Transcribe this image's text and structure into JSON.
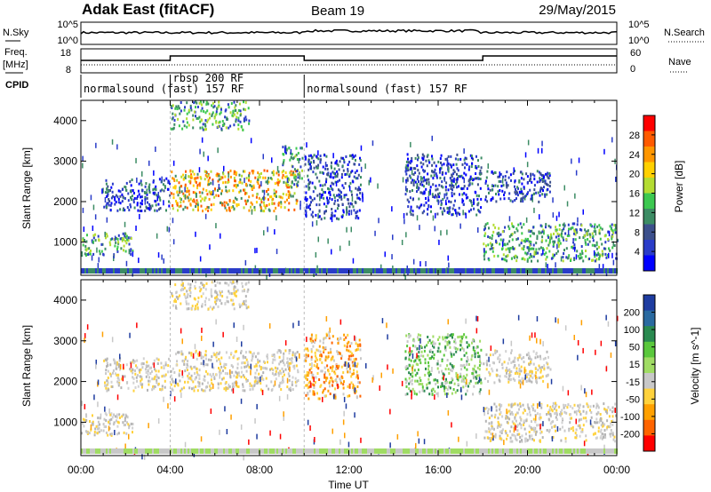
{
  "header": {
    "station": "Adak East (fitACF)",
    "beam": "Beam 19",
    "date": "29/May/2015"
  },
  "summary_panel": {
    "left_label_top": "N.Sky",
    "left_label_freq_1": "Freq.",
    "left_label_freq_2": "[MHz]",
    "left_label_cpid": "CPID",
    "right_label_top": "N.Search",
    "right_label_nave": "Nave",
    "sky_ticks": [
      "10^5",
      "10^0"
    ],
    "search_ticks": [
      "10^5",
      "10^0"
    ],
    "freq_ticks": [
      "18",
      "8"
    ],
    "nave_ticks": [
      "60",
      "0"
    ],
    "cpid_segments": [
      {
        "label": "normalsound (fast) 157 RF",
        "start": 0,
        "end": 4
      },
      {
        "label": "rbsp 200 RF",
        "start": 4,
        "end": 10
      },
      {
        "label": "normalsound (fast) 157 RF",
        "start": 10,
        "end": 24
      }
    ]
  },
  "chart_data": [
    {
      "type": "heatmap",
      "name": "power-panel",
      "ylabel": "Slant Range [km]",
      "yticks": [
        1000,
        2000,
        3000,
        4000
      ],
      "ylim": [
        180,
        4500
      ],
      "xlim": [
        0,
        24
      ],
      "colorbar": {
        "label": "Power [dB]",
        "ticks": [
          "28",
          "24",
          "20",
          "16",
          "12",
          "8",
          "4"
        ],
        "colors": [
          "#ff0000",
          "#ff5a00",
          "#ff9600",
          "#ffd000",
          "#b4dc32",
          "#3cc850",
          "#3c8c64",
          "#3c508c",
          "#2a3cc8",
          "#0000ff"
        ]
      },
      "features": [
        {
          "t0": 0.0,
          "t1": 2.3,
          "r0": 700,
          "r1": 1250,
          "level": "mid"
        },
        {
          "t0": 1.0,
          "t1": 4.0,
          "r0": 1800,
          "r1": 2600,
          "level": "low"
        },
        {
          "t0": 4.0,
          "t1": 9.7,
          "r0": 1800,
          "r1": 2800,
          "level": "high"
        },
        {
          "t0": 4.0,
          "t1": 7.5,
          "r0": 3800,
          "r1": 4500,
          "level": "mid"
        },
        {
          "t0": 9.0,
          "t1": 9.9,
          "r0": 2400,
          "r1": 3400,
          "level": "mid"
        },
        {
          "t0": 10.0,
          "t1": 12.5,
          "r0": 1600,
          "r1": 3200,
          "level": "low"
        },
        {
          "t0": 14.5,
          "t1": 17.9,
          "r0": 1700,
          "r1": 3200,
          "level": "low"
        },
        {
          "t0": 18.0,
          "t1": 21.0,
          "r0": 2000,
          "r1": 2800,
          "level": "low"
        },
        {
          "t0": 18.0,
          "t1": 24.0,
          "r0": 550,
          "r1": 1500,
          "level": "mid"
        }
      ]
    },
    {
      "type": "heatmap",
      "name": "velocity-panel",
      "ylabel": "Slant Range [km]",
      "yticks": [
        1000,
        2000,
        3000,
        4000
      ],
      "ylim": [
        180,
        4500
      ],
      "xlim": [
        0,
        24
      ],
      "xticks": [
        "00:00",
        "04:00",
        "08:00",
        "12:00",
        "16:00",
        "20:00",
        "00:00"
      ],
      "xlabel": "Time UT",
      "colorbar": {
        "label": "Velocity [m s^-1]",
        "ticks": [
          "200",
          "100",
          "50",
          "15",
          "-15",
          "-50",
          "-100",
          "-200"
        ],
        "colors": [
          "#1e3ca0",
          "#2a6aa0",
          "#2a8a50",
          "#5ac83c",
          "#a0dc64",
          "#c8c8c8",
          "#ffd23c",
          "#ffa000",
          "#ff6400",
          "#ff0000"
        ]
      },
      "features": [
        {
          "t0": 0.0,
          "t1": 2.3,
          "r0": 700,
          "r1": 1250,
          "level": "gray"
        },
        {
          "t0": 1.0,
          "t1": 4.0,
          "r0": 1800,
          "r1": 2600,
          "level": "gray"
        },
        {
          "t0": 4.0,
          "t1": 9.7,
          "r0": 1800,
          "r1": 2800,
          "level": "gray"
        },
        {
          "t0": 4.0,
          "t1": 7.5,
          "r0": 3800,
          "r1": 4500,
          "level": "gray"
        },
        {
          "t0": 10.0,
          "t1": 12.5,
          "r0": 1600,
          "r1": 3200,
          "level": "neg"
        },
        {
          "t0": 14.5,
          "t1": 17.9,
          "r0": 1700,
          "r1": 3200,
          "level": "pos"
        },
        {
          "t0": 18.0,
          "t1": 21.0,
          "r0": 2000,
          "r1": 2800,
          "level": "gray"
        },
        {
          "t0": 18.0,
          "t1": 24.0,
          "r0": 550,
          "r1": 1500,
          "level": "gray"
        }
      ]
    }
  ]
}
